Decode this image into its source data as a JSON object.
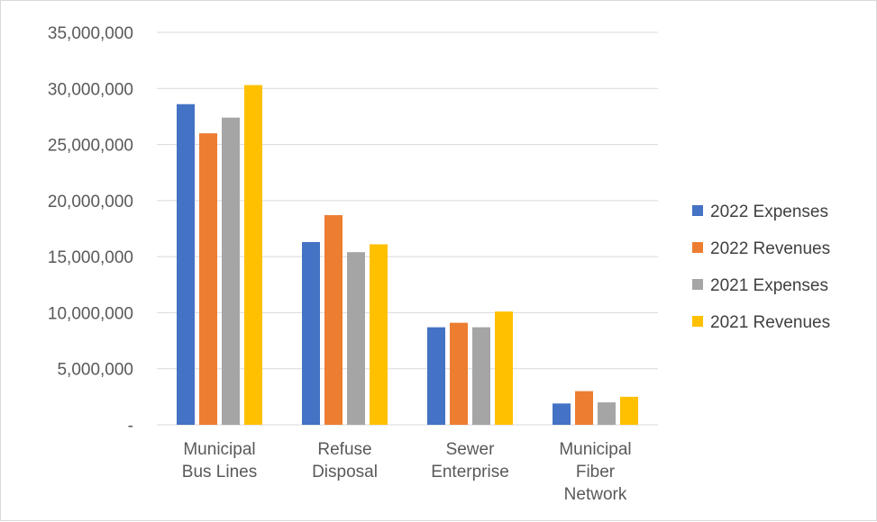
{
  "chart_data": {
    "type": "bar",
    "categories": [
      [
        "Municipal",
        "Bus Lines"
      ],
      [
        "Refuse",
        "Disposal"
      ],
      [
        "Sewer",
        "Enterprise"
      ],
      [
        "Municipal",
        "Fiber",
        "Network"
      ]
    ],
    "series": [
      {
        "name": "2022 Expenses",
        "color": "#4472C4",
        "values": [
          28600000,
          16300000,
          8700000,
          1900000
        ]
      },
      {
        "name": "2022 Revenues",
        "color": "#ED7D31",
        "values": [
          26000000,
          18700000,
          9100000,
          3000000
        ]
      },
      {
        "name": "2021 Expenses",
        "color": "#A5A5A5",
        "values": [
          27400000,
          15400000,
          8700000,
          2000000
        ]
      },
      {
        "name": "2021 Revenues",
        "color": "#FFC000",
        "values": [
          30300000,
          16100000,
          10100000,
          2500000
        ]
      }
    ],
    "y_ticks": [
      "-",
      "5,000,000",
      "10,000,000",
      "15,000,000",
      "20,000,000",
      "25,000,000",
      "30,000,000",
      "35,000,000"
    ],
    "ylim": [
      0,
      35000000
    ],
    "grid": true,
    "legend_position": "right",
    "title": "",
    "xlabel": "",
    "ylabel": ""
  }
}
